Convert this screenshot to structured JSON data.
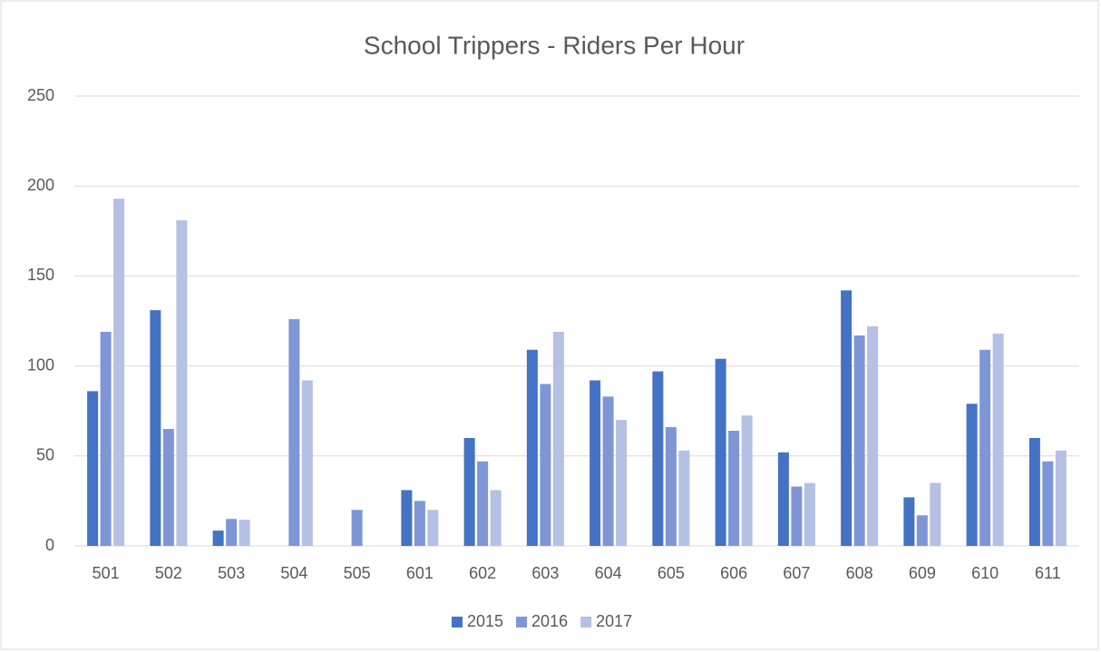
{
  "chart_data": {
    "type": "bar",
    "title": "School Trippers - Riders Per Hour",
    "categories": [
      "501",
      "502",
      "503",
      "504",
      "505",
      "601",
      "602",
      "603",
      "604",
      "605",
      "606",
      "607",
      "608",
      "609",
      "610",
      "611"
    ],
    "series": [
      {
        "name": "2015",
        "color": "#4472c4",
        "values": [
          86,
          131,
          8.5,
          null,
          null,
          31,
          60,
          109,
          92,
          97,
          104,
          52,
          142,
          27,
          79,
          60
        ]
      },
      {
        "name": "2016",
        "color": "#7f96d6",
        "values": [
          119,
          65,
          15,
          126,
          20,
          25,
          47,
          90,
          83,
          66,
          64,
          33,
          117,
          17,
          109,
          47
        ]
      },
      {
        "name": "2017",
        "color": "#b4c0e4",
        "values": [
          193,
          181,
          14.5,
          92,
          null,
          20,
          31,
          119,
          70,
          53,
          72.5,
          35,
          122,
          35,
          118,
          53
        ]
      }
    ],
    "ylim": [
      0,
      250
    ],
    "yticks": [
      0,
      50,
      100,
      150,
      200,
      250
    ],
    "grid": true,
    "legend": "bottom"
  }
}
